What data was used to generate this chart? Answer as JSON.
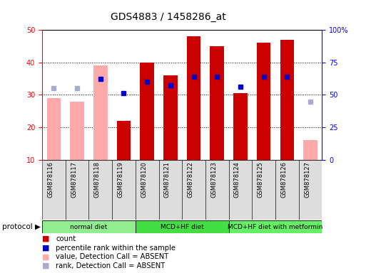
{
  "title": "GDS4883 / 1458286_at",
  "samples": [
    "GSM878116",
    "GSM878117",
    "GSM878118",
    "GSM878119",
    "GSM878120",
    "GSM878121",
    "GSM878122",
    "GSM878123",
    "GSM878124",
    "GSM878125",
    "GSM878126",
    "GSM878127"
  ],
  "count_values": [
    null,
    null,
    null,
    22,
    40,
    36,
    48,
    45,
    30.5,
    46,
    47,
    null
  ],
  "count_absent": [
    29,
    28,
    39,
    null,
    null,
    null,
    null,
    null,
    null,
    null,
    null,
    16
  ],
  "percentile_values": [
    null,
    null,
    35,
    30.5,
    34,
    33,
    35.5,
    35.5,
    32.5,
    35.5,
    35.5,
    null
  ],
  "percentile_absent": [
    32,
    32,
    null,
    null,
    null,
    null,
    null,
    null,
    null,
    null,
    null,
    28
  ],
  "ylim_left": [
    10,
    50
  ],
  "ylim_right": [
    0,
    100
  ],
  "yticks_left": [
    10,
    20,
    30,
    40,
    50
  ],
  "yticks_right": [
    0,
    25,
    50,
    75,
    100
  ],
  "ytick_labels_right": [
    "0",
    "25",
    "50",
    "75",
    "100%"
  ],
  "protocol_groups": [
    {
      "label": "normal diet",
      "start": 0,
      "end": 4,
      "color": "#90ee90"
    },
    {
      "label": "MCD+HF diet",
      "start": 4,
      "end": 8,
      "color": "#44dd44"
    },
    {
      "label": "MCD+HF diet with metformin",
      "start": 8,
      "end": 12,
      "color": "#66ee66"
    }
  ],
  "bar_width": 0.6,
  "count_color": "#cc0000",
  "count_absent_color": "#ffaaaa",
  "percentile_color": "#0000cc",
  "percentile_absent_color": "#aaaacc",
  "background_color": "#ffffff",
  "legend_items": [
    {
      "label": "count",
      "color": "#cc0000"
    },
    {
      "label": "percentile rank within the sample",
      "color": "#0000cc"
    },
    {
      "label": "value, Detection Call = ABSENT",
      "color": "#ffaaaa"
    },
    {
      "label": "rank, Detection Call = ABSENT",
      "color": "#aaaacc"
    }
  ],
  "grid_yticks": [
    20,
    30,
    40
  ]
}
